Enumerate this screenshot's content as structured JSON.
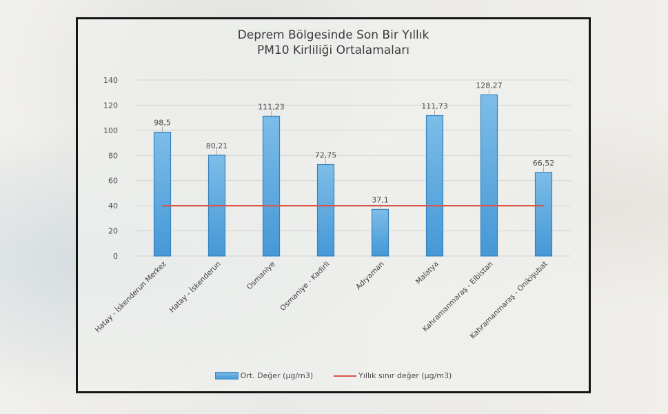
{
  "chart": {
    "title_line1": "Deprem  Bölgesinde  Son  Bir Yıllık",
    "title_line2": "PM10 Kirliliği Ortalamaları",
    "legend": {
      "bar_label": "Ort. Değer (µg/m3)",
      "line_label": "Yıllık sınır değer (µg/m3)"
    },
    "colors": {
      "bar_top": "#7dbde8",
      "bar_bottom": "#4598d6",
      "bar_border": "#3583be",
      "limit_line": "#d9544a",
      "grid": "#d4d4d2",
      "axis_text": "#4a4a4a",
      "frame": "#151515"
    }
  },
  "chart_data": {
    "type": "bar",
    "title": "Deprem Bölgesinde Son Bir Yıllık PM10 Kirliliği Ortalamaları",
    "categories": [
      "Hatay - İskenderun Merkez",
      "Hatay - İskenderun",
      "Osmaniye",
      "Osmaniye - Kadirli",
      "Adıyaman",
      "Malatya",
      "Kahramanmaraş - Elbistan",
      "Kahramanmaraş - Onikişubat"
    ],
    "series": [
      {
        "name": "Ort. Değer (µg/m3)",
        "type": "bar",
        "values": [
          98.5,
          80.21,
          111.23,
          72.75,
          37.1,
          111.73,
          128.27,
          66.52
        ],
        "labels": [
          "98,5",
          "80,21",
          "111,23",
          "72,75",
          "37,1",
          "111,73",
          "128,27",
          "66,52"
        ]
      },
      {
        "name": "Yıllık sınır değer (µg/m3)",
        "type": "line",
        "values": [
          40,
          40,
          40,
          40,
          40,
          40,
          40,
          40
        ]
      }
    ],
    "xlabel": "",
    "ylabel": "",
    "ylim": [
      0,
      140
    ],
    "yticks": [
      0,
      20,
      40,
      60,
      80,
      100,
      120,
      140
    ],
    "grid": true,
    "legend_position": "bottom"
  }
}
